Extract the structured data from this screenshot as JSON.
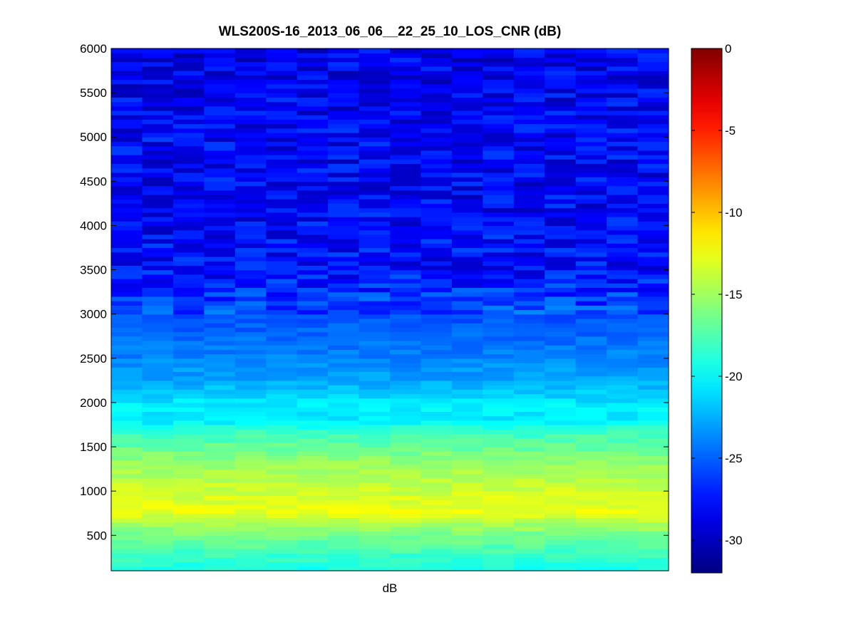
{
  "chart_data": {
    "type": "heatmap",
    "title": "WLS200S-16_2013_06_06__22_25_10_LOS_CNR (dB)",
    "xlabel": "dB",
    "ylabel": "",
    "x_ticks": [],
    "ylim": [
      100,
      6000
    ],
    "y_ticks": [
      500,
      1000,
      1500,
      2000,
      2500,
      3000,
      3500,
      4000,
      4500,
      5000,
      5500,
      6000
    ],
    "colormap": "jet",
    "clim": [
      -32,
      0
    ],
    "colorbar_ticks": [
      0,
      -5,
      -10,
      -15,
      -20,
      -25,
      -30
    ],
    "grid": false,
    "n_columns": 18,
    "profile": [
      {
        "y": 100,
        "value": -19.5
      },
      {
        "y": 300,
        "value": -18.0
      },
      {
        "y": 500,
        "value": -16.3
      },
      {
        "y": 650,
        "value": -14.5
      },
      {
        "y": 780,
        "value": -12.5
      },
      {
        "y": 900,
        "value": -13.2
      },
      {
        "y": 1100,
        "value": -14.0
      },
      {
        "y": 1300,
        "value": -15.2
      },
      {
        "y": 1500,
        "value": -16.8
      },
      {
        "y": 1700,
        "value": -18.5
      },
      {
        "y": 1800,
        "value": -20.8
      },
      {
        "y": 1950,
        "value": -20.3
      },
      {
        "y": 2100,
        "value": -21.5
      },
      {
        "y": 2300,
        "value": -23.0
      },
      {
        "y": 2600,
        "value": -24.2
      },
      {
        "y": 3000,
        "value": -25.5
      },
      {
        "y": 3500,
        "value": -27.6
      },
      {
        "y": 4000,
        "value": -28.0
      },
      {
        "y": 4500,
        "value": -28.2
      },
      {
        "y": 5000,
        "value": -28.0
      },
      {
        "y": 5500,
        "value": -28.4
      },
      {
        "y": 6000,
        "value": -28.6
      }
    ],
    "variability": {
      "below_3000": 0.5,
      "above_3000": 1.3
    }
  }
}
